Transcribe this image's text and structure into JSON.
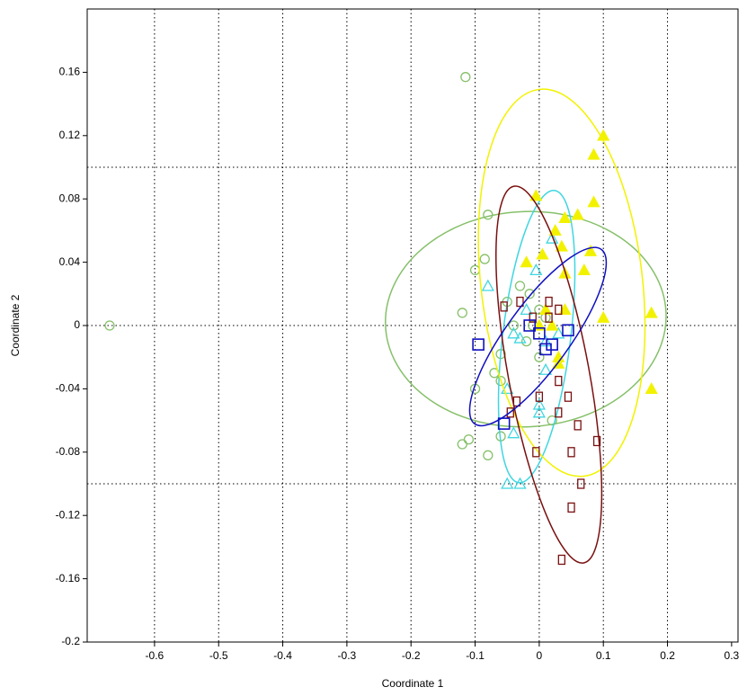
{
  "chart_data": {
    "type": "scatter",
    "xlabel": "Coordinate 1",
    "ylabel": "Coordinate 2",
    "xlim": [
      -0.705,
      0.31
    ],
    "ylim": [
      -0.2,
      0.2
    ],
    "xticks": [
      -0.6,
      -0.5,
      -0.4,
      -0.3,
      -0.2,
      -0.1,
      0,
      0.1,
      0.2,
      0.3
    ],
    "yticks": [
      0.16,
      0.12,
      0.08,
      0.04,
      0,
      -0.04,
      -0.08,
      -0.12,
      -0.16,
      -0.2
    ],
    "xgrid": [
      -0.6,
      -0.5,
      -0.4,
      -0.3,
      -0.2,
      -0.1,
      0,
      0.1,
      0.2
    ],
    "ygrid": [
      0.1,
      0,
      -0.1
    ],
    "series": [
      {
        "marker": "circle",
        "color": "#86c06a",
        "x": [
          -0.67,
          -0.115,
          -0.08,
          -0.085,
          -0.1,
          -0.12,
          -0.04,
          -0.06,
          -0.07,
          -0.1,
          -0.06,
          -0.12,
          -0.11,
          -0.08,
          -0.06,
          0.02,
          -0.03,
          -0.015,
          -0.01,
          0.0,
          -0.05,
          -0.02,
          0.0,
          0.01
        ],
        "y": [
          0.0,
          0.157,
          0.07,
          0.042,
          0.035,
          0.008,
          0.0,
          -0.018,
          -0.03,
          -0.04,
          -0.035,
          -0.075,
          -0.072,
          -0.082,
          -0.07,
          -0.06,
          0.025,
          0.02,
          0.0,
          -0.02,
          0.015,
          -0.01,
          0.01,
          0.005
        ],
        "ellipse": {
          "cx": -0.021,
          "cy": 0.004,
          "rx": 0.219,
          "ry": 0.068,
          "angle": -3
        }
      },
      {
        "marker": "triangle",
        "color": "#3fd6e0",
        "x": [
          -0.08,
          -0.04,
          -0.03,
          -0.05,
          -0.04,
          -0.05,
          -0.03,
          -0.005,
          0.0,
          0.0,
          0.01,
          0.02,
          0.03,
          -0.02,
          0.01
        ],
        "y": [
          0.025,
          -0.005,
          -0.008,
          -0.04,
          -0.068,
          -0.1,
          -0.1,
          0.035,
          -0.05,
          -0.055,
          -0.028,
          0.055,
          -0.005,
          0.01,
          -0.01
        ],
        "ellipse": {
          "cx": -0.004,
          "cy": -0.007,
          "rx": 0.053,
          "ry": 0.093,
          "angle": 7
        }
      },
      {
        "marker": "filled-triangle",
        "color": "#f2f200",
        "x": [
          0.1,
          0.085,
          0.085,
          0.06,
          0.04,
          0.025,
          0.005,
          0.035,
          0.04,
          0.07,
          0.1,
          0.175,
          0.175,
          0.03,
          0.03,
          0.0,
          0.01,
          -0.02,
          0.04,
          0.08,
          -0.005,
          0.02
        ],
        "y": [
          0.12,
          0.108,
          0.078,
          0.07,
          0.068,
          0.06,
          0.045,
          0.05,
          0.033,
          0.035,
          0.005,
          0.008,
          -0.04,
          -0.024,
          -0.02,
          0.0,
          0.01,
          0.04,
          0.01,
          0.047,
          0.082,
          0.0
        ],
        "ellipse": {
          "cx": 0.035,
          "cy": 0.027,
          "rx": 0.126,
          "ry": 0.123,
          "angle": -6.6
        }
      },
      {
        "marker": "small-square",
        "color": "#7a1010",
        "x": [
          -0.055,
          -0.03,
          -0.045,
          -0.035,
          -0.005,
          0.0,
          0.015,
          0.03,
          0.03,
          0.045,
          0.03,
          0.06,
          0.05,
          0.09,
          0.065,
          0.05,
          0.035,
          0.015,
          -0.01
        ],
        "y": [
          0.012,
          0.015,
          -0.055,
          -0.048,
          -0.08,
          -0.045,
          0.015,
          0.01,
          -0.035,
          -0.045,
          -0.055,
          -0.063,
          -0.08,
          -0.073,
          -0.1,
          -0.115,
          -0.148,
          0.005,
          0.005
        ],
        "ellipse": {
          "cx": 0.015,
          "cy": -0.031,
          "rx": 0.063,
          "ry": 0.121,
          "angle": -10.5
        }
      },
      {
        "marker": "square",
        "color": "#1010c0",
        "x": [
          -0.095,
          -0.055,
          -0.015,
          0.01,
          0.02,
          0.045,
          0.0
        ],
        "y": [
          -0.012,
          -0.062,
          0.0,
          -0.015,
          -0.012,
          -0.003,
          -0.005
        ],
        "ellipse": {
          "cx": -0.002,
          "cy": -0.007,
          "rx": 0.168,
          "ry": 0.02,
          "angle": -54
        }
      }
    ]
  }
}
